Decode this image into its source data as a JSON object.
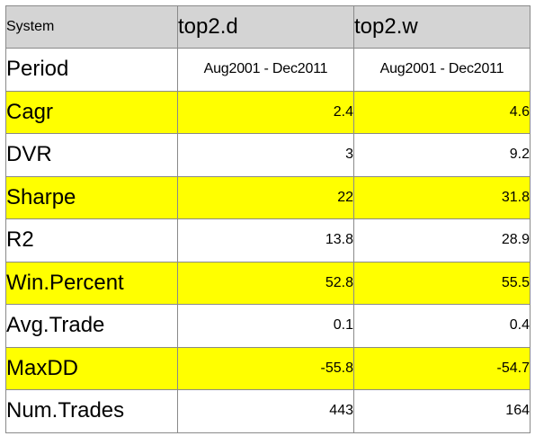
{
  "table": {
    "header": {
      "label": "System",
      "columns": [
        "top2.d",
        "top2.w"
      ]
    },
    "rows": [
      {
        "label": "Period",
        "values": [
          "Aug2001 - Dec2011",
          "Aug2001 - Dec2011"
        ],
        "highlight": false
      },
      {
        "label": "Cagr",
        "values": [
          "2.4",
          "4.6"
        ],
        "highlight": true
      },
      {
        "label": "DVR",
        "values": [
          "3",
          "9.2"
        ],
        "highlight": false
      },
      {
        "label": "Sharpe",
        "values": [
          "22",
          "31.8"
        ],
        "highlight": true
      },
      {
        "label": "R2",
        "values": [
          "13.8",
          "28.9"
        ],
        "highlight": false
      },
      {
        "label": "Win.Percent",
        "values": [
          "52.8",
          "55.5"
        ],
        "highlight": true
      },
      {
        "label": "Avg.Trade",
        "values": [
          "0.1",
          "0.4"
        ],
        "highlight": false
      },
      {
        "label": "MaxDD",
        "values": [
          "-55.8",
          "-54.7"
        ],
        "highlight": true
      },
      {
        "label": "Num.Trades",
        "values": [
          "443",
          "164"
        ],
        "highlight": false
      }
    ],
    "colors": {
      "highlight": "#ffff00",
      "header_bg": "#d4d4d4",
      "border": "#8a8a8a"
    }
  }
}
